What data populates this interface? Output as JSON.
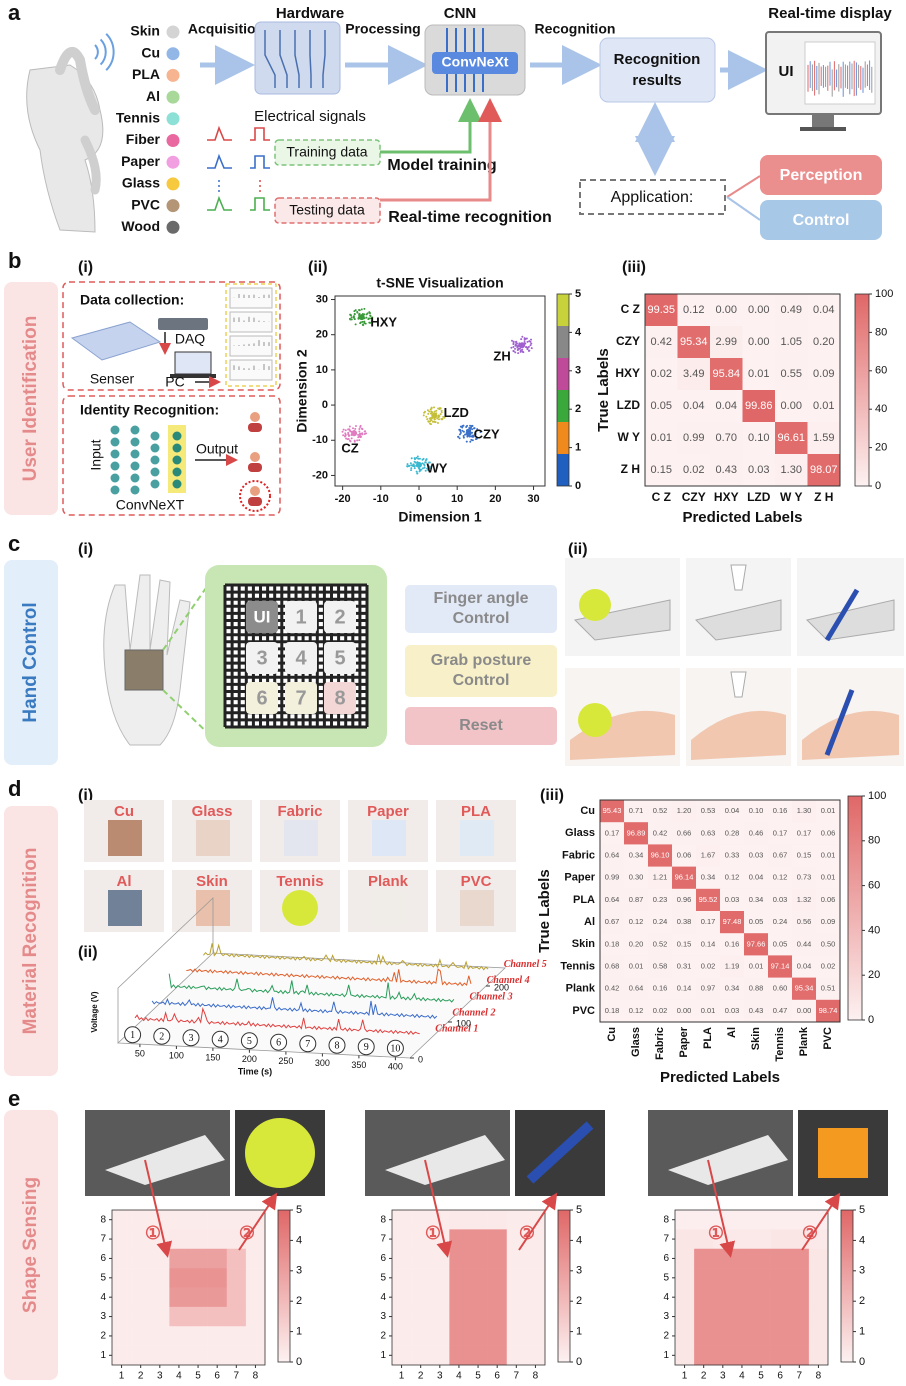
{
  "panel_a": {
    "label": "a",
    "materials": [
      {
        "name": "Skin",
        "color": "#d4d4d4"
      },
      {
        "name": "Cu",
        "color": "#92b6e6"
      },
      {
        "name": "PLA",
        "color": "#f6b590"
      },
      {
        "name": "Al",
        "color": "#a8d89a"
      },
      {
        "name": "Tennis",
        "color": "#8de0d6"
      },
      {
        "name": "Fiber",
        "color": "#e8689f"
      },
      {
        "name": "Paper",
        "color": "#f29fe2"
      },
      {
        "name": "Glass",
        "color": "#f6c93f"
      },
      {
        "name": "PVC",
        "color": "#b49677"
      },
      {
        "name": "Wood",
        "color": "#6a6a6a"
      }
    ],
    "acquisition": "Acquisition",
    "hardware": "Hardware",
    "processing": "Processing",
    "cnn": "CNN",
    "convnext": "ConvNeXt",
    "recognition": "Recognition",
    "display": "Real-time display",
    "results": [
      "Recognition",
      "results"
    ],
    "ui": "UI",
    "signals": "Electrical signals",
    "training_data": "Training data",
    "model_training": "Model training",
    "testing_data": "Testing data",
    "realtime": "Real-time recognition",
    "application": "Application:",
    "perception": "Perception",
    "control": "Control"
  },
  "panel_b": {
    "label": "b",
    "side": "User Identification",
    "sub": [
      "(i)",
      "(ii)",
      "(iii)"
    ],
    "collection": "Data collection:",
    "daq": "DAQ",
    "senser": "Senser",
    "pc": "PC",
    "identity": "Identity Recognition:",
    "input": "Input",
    "output": "Output",
    "network": "ConvNeXT",
    "tsne": {
      "type": "scatter",
      "title": "t-SNE Visualization",
      "x_label": "Dimension 1",
      "y_label": "Dimension 2",
      "xlim": [
        -22,
        33
      ],
      "ylim": [
        -23,
        31
      ],
      "xticks": [
        -20,
        -10,
        0,
        10,
        20,
        30
      ],
      "yticks": [
        -20,
        -10,
        0,
        10,
        20,
        30
      ],
      "series": [
        {
          "name": "HXY",
          "color": "#3a9a3a",
          "x": -15,
          "y": 25
        },
        {
          "name": "ZH",
          "color": "#a060d0",
          "x": 27,
          "y": 17
        },
        {
          "name": "CZ",
          "color": "#e07cc0",
          "x": -17,
          "y": -8
        },
        {
          "name": "LZD",
          "color": "#c4bf38",
          "x": 4,
          "y": -3
        },
        {
          "name": "CZY",
          "color": "#3a6fc9",
          "x": 13,
          "y": -8
        },
        {
          "name": "WY",
          "color": "#3ab8d0",
          "x": 0,
          "y": -17
        }
      ],
      "colorbar": {
        "lim": [
          0,
          5
        ],
        "ticks": [
          0,
          1,
          2,
          3,
          4,
          5
        ],
        "colors": [
          "#1f5fbf",
          "#f08a1c",
          "#3aa83a",
          "#c04a9a",
          "#888888",
          "#c8d23a"
        ]
      }
    },
    "matrix": {
      "type": "heatmap",
      "labels": [
        "C Z",
        "CZY",
        "HXY",
        "LZD",
        "W Y",
        "Z H"
      ],
      "x_label": "Predicted Labels",
      "y_label": "True Labels",
      "values": [
        [
          99.35,
          0.12,
          0.0,
          0.0,
          0.49,
          0.04
        ],
        [
          0.42,
          95.34,
          2.99,
          0.0,
          1.05,
          0.2
        ],
        [
          0.02,
          3.49,
          95.84,
          0.01,
          0.55,
          0.09
        ],
        [
          0.05,
          0.04,
          0.04,
          99.86,
          0.0,
          0.01
        ],
        [
          0.01,
          0.99,
          0.7,
          0.1,
          96.61,
          1.59
        ],
        [
          0.15,
          0.02,
          0.43,
          0.03,
          1.3,
          98.07
        ]
      ],
      "value_labels": [
        [
          "99.35",
          "0.12",
          "0.00",
          "0.00",
          "0.49",
          "0.04"
        ],
        [
          "0.42",
          "95.34",
          "2.99",
          "0.00",
          "1.05",
          "0.20"
        ],
        [
          "0.02",
          "3.49",
          "95.84",
          "0.01",
          "0.55",
          "0.09"
        ],
        [
          "0.05",
          "0.04",
          "0.04",
          "99.86",
          "0.00",
          "0.01"
        ],
        [
          "0.01",
          "0.99",
          "0.70",
          "0.10",
          "96.61",
          "1.59"
        ],
        [
          "0.15",
          "0.02",
          "0.43",
          "0.03",
          "1.30",
          "98.07"
        ]
      ],
      "clim": [
        0,
        100
      ],
      "ticks": [
        0,
        20,
        40,
        60,
        80,
        100
      ],
      "colors": [
        "#fdf1f1",
        "#e06767"
      ]
    }
  },
  "panel_c": {
    "label": "c",
    "side": "Hand Control",
    "sub": [
      "(i)",
      "(ii)"
    ],
    "keys": [
      "UI",
      "1",
      "2",
      "3",
      "4",
      "5",
      "6",
      "7",
      "8"
    ],
    "buttons": [
      {
        "lines": [
          "Finger angle",
          "Control"
        ]
      },
      {
        "lines": [
          "Grab posture",
          "Control"
        ]
      },
      {
        "lines": [
          "Reset"
        ]
      }
    ]
  },
  "panel_d": {
    "label": "d",
    "side": "Material Recognition",
    "sub": [
      "(i)",
      "(ii)",
      "(iii)"
    ],
    "samples": [
      "Cu",
      "Glass",
      "Fabric",
      "Paper",
      "PLA",
      "Al",
      "Skin",
      "Tennis",
      "Plank",
      "PVC"
    ],
    "signals": {
      "x_label": "Time (s)",
      "y_label": "Voltage (V)",
      "xlim": [
        20,
        420
      ],
      "xticks": [
        50,
        100,
        150,
        200,
        250,
        300,
        350,
        400
      ],
      "zlim": [
        0,
        250
      ],
      "zticks": [
        0,
        100,
        200
      ],
      "channels": [
        "Channel 1",
        "Channel 2",
        "Channel 3",
        "Channel 4",
        "Channel 5"
      ],
      "events": [
        "1",
        "2",
        "3",
        "4",
        "5",
        "6",
        "7",
        "8",
        "9",
        "10"
      ]
    },
    "matrix": {
      "type": "heatmap",
      "labels": [
        "Cu",
        "Glass",
        "Fabric",
        "Paper",
        "PLA",
        "Al",
        "Skin",
        "Tennis",
        "Plank",
        "PVC"
      ],
      "x_label": "Predicted Labels",
      "y_label": "True Labels",
      "values": [
        [
          95.43,
          0.71,
          0.52,
          1.2,
          0.53,
          0.04,
          0.1,
          0.16,
          1.3,
          0.01
        ],
        [
          0.17,
          96.89,
          0.42,
          0.66,
          0.63,
          0.28,
          0.46,
          0.17,
          0.17,
          0.06
        ],
        [
          0.64,
          0.34,
          96.1,
          0.06,
          1.67,
          0.33,
          0.03,
          0.67,
          0.15,
          0.01
        ],
        [
          0.99,
          0.3,
          1.21,
          96.14,
          0.34,
          0.12,
          0.04,
          0.12,
          0.73,
          0.01
        ],
        [
          0.64,
          0.87,
          0.23,
          0.96,
          95.52,
          0.03,
          0.34,
          0.03,
          1.32,
          0.06
        ],
        [
          0.67,
          0.12,
          0.24,
          0.38,
          0.17,
          97.48,
          0.05,
          0.24,
          0.56,
          0.09
        ],
        [
          0.18,
          0.2,
          0.52,
          0.15,
          0.14,
          0.16,
          97.66,
          0.05,
          0.44,
          0.5
        ],
        [
          0.68,
          0.01,
          0.58,
          0.31,
          0.02,
          1.19,
          0.01,
          97.14,
          0.04,
          0.02
        ],
        [
          0.42,
          0.64,
          0.16,
          0.14,
          0.97,
          0.34,
          0.88,
          0.6,
          95.34,
          0.51
        ],
        [
          0.18,
          0.12,
          0.02,
          0.0,
          0.01,
          0.03,
          0.43,
          0.47,
          0.0,
          98.74
        ]
      ],
      "value_labels": [
        [
          "95.43",
          "0.71",
          "0.52",
          "1.20",
          "0.53",
          "0.04",
          "0.10",
          "0.16",
          "1.30",
          "0.01"
        ],
        [
          "0.17",
          "96.89",
          "0.42",
          "0.66",
          "0.63",
          "0.28",
          "0.46",
          "0.17",
          "0.17",
          "0.06"
        ],
        [
          "0.64",
          "0.34",
          "96.10",
          "0.06",
          "1.67",
          "0.33",
          "0.03",
          "0.67",
          "0.15",
          "0.01"
        ],
        [
          "0.99",
          "0.30",
          "1.21",
          "96.14",
          "0.34",
          "0.12",
          "0.04",
          "0.12",
          "0.73",
          "0.01"
        ],
        [
          "0.64",
          "0.87",
          "0.23",
          "0.96",
          "95.52",
          "0.03",
          "0.34",
          "0.03",
          "1.32",
          "0.06"
        ],
        [
          "0.67",
          "0.12",
          "0.24",
          "0.38",
          "0.17",
          "97.48",
          "0.05",
          "0.24",
          "0.56",
          "0.09"
        ],
        [
          "0.18",
          "0.20",
          "0.52",
          "0.15",
          "0.14",
          "0.16",
          "97.66",
          "0.05",
          "0.44",
          "0.50"
        ],
        [
          "0.68",
          "0.01",
          "0.58",
          "0.31",
          "0.02",
          "1.19",
          "0.01",
          "97.14",
          "0.04",
          "0.02"
        ],
        [
          "0.42",
          "0.64",
          "0.16",
          "0.14",
          "0.97",
          "0.34",
          "0.88",
          "0.60",
          "95.34",
          "0.51"
        ],
        [
          "0.18",
          "0.12",
          "0.02",
          "0.00",
          "0.01",
          "0.03",
          "0.43",
          "0.47",
          "0.00",
          "98.74"
        ]
      ],
      "clim": [
        0,
        100
      ],
      "ticks": [
        0,
        20,
        40,
        60,
        80,
        100
      ],
      "colors": [
        "#fdf1f1",
        "#e06767"
      ]
    }
  },
  "panel_e": {
    "label": "e",
    "side": "Shape Sensing",
    "markers": [
      "①",
      "②"
    ],
    "ticks": [
      1,
      2,
      3,
      4,
      5,
      6,
      7,
      8
    ],
    "clim": [
      0,
      5
    ],
    "cticks": [
      0,
      1,
      2,
      3,
      4,
      5
    ],
    "colors": [
      "#fdf1f1",
      "#e06767"
    ],
    "maps": [
      {
        "values": [
          [
            0.2,
            0.2,
            0.2,
            0.2,
            0.2,
            0.2,
            0.2,
            0.2
          ],
          [
            0.2,
            0.2,
            0.2,
            0.3,
            0.3,
            0.3,
            0.3,
            0.2
          ],
          [
            0.2,
            0.2,
            0.2,
            2.9,
            2.9,
            2.9,
            1.8,
            0.2
          ],
          [
            0.2,
            0.2,
            0.2,
            3.4,
            3.4,
            3.4,
            1.8,
            0.2
          ],
          [
            0.2,
            0.2,
            0.2,
            3.2,
            3.2,
            3.2,
            1.8,
            0.2
          ],
          [
            0.2,
            0.2,
            0.2,
            1.8,
            1.8,
            1.8,
            1.8,
            0.2
          ],
          [
            0.2,
            0.2,
            0.2,
            0.2,
            0.2,
            0.2,
            0.2,
            0.2
          ],
          [
            0.2,
            0.2,
            0.2,
            0.2,
            0.2,
            0.2,
            0.2,
            0.2
          ]
        ]
      },
      {
        "values": [
          [
            0.2,
            0.2,
            0.2,
            0.3,
            0.3,
            0.3,
            0.2,
            0.2
          ],
          [
            0.2,
            0.2,
            0.2,
            3.5,
            3.5,
            3.5,
            0.2,
            0.2
          ],
          [
            0.2,
            0.2,
            0.2,
            3.5,
            3.5,
            3.5,
            0.2,
            0.2
          ],
          [
            0.2,
            0.2,
            0.2,
            3.5,
            3.5,
            3.5,
            0.2,
            0.2
          ],
          [
            0.2,
            0.2,
            0.2,
            3.5,
            3.5,
            3.5,
            0.2,
            0.2
          ],
          [
            0.2,
            0.2,
            0.2,
            3.5,
            3.5,
            3.5,
            0.2,
            0.2
          ],
          [
            0.2,
            0.2,
            0.2,
            3.5,
            3.5,
            3.5,
            0.2,
            0.2
          ],
          [
            0.2,
            0.2,
            0.2,
            3.5,
            3.5,
            3.5,
            0.2,
            0.2
          ]
        ]
      },
      {
        "values": [
          [
            0.1,
            0.1,
            0.1,
            0.1,
            0.1,
            0.1,
            0.1,
            0.1
          ],
          [
            0.4,
            0.4,
            0.3,
            0.3,
            0.3,
            0.4,
            0.4,
            0.3
          ],
          [
            0.4,
            3.5,
            3.5,
            3.5,
            3.5,
            3.5,
            3.5,
            0.4
          ],
          [
            0.4,
            3.5,
            3.5,
            3.5,
            3.5,
            3.5,
            3.5,
            0.4
          ],
          [
            0.4,
            3.5,
            3.5,
            3.5,
            3.5,
            3.5,
            3.5,
            0.4
          ],
          [
            0.4,
            3.5,
            3.5,
            3.5,
            3.5,
            3.5,
            3.5,
            0.4
          ],
          [
            0.4,
            3.5,
            3.5,
            3.5,
            3.5,
            3.5,
            3.5,
            0.4
          ],
          [
            0.4,
            3.5,
            3.5,
            3.5,
            3.5,
            3.5,
            3.5,
            0.4
          ]
        ]
      }
    ]
  }
}
